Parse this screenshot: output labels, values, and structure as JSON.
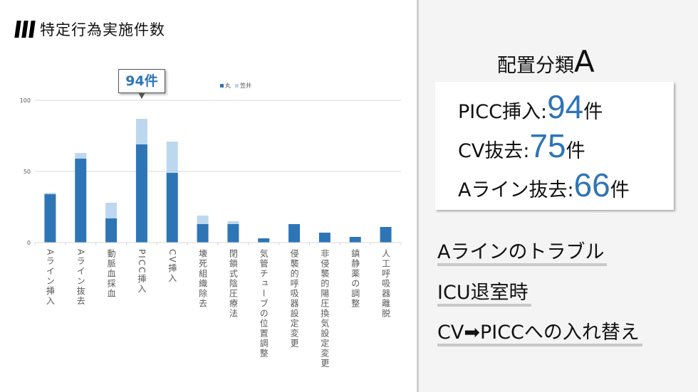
{
  "header": {
    "title": "特定行為実施件数"
  },
  "callout": {
    "label": "94件"
  },
  "chart_data": {
    "type": "bar",
    "stacked": true,
    "categories": [
      "Aライン挿入",
      "Aライン抜去",
      "動脈血採血",
      "PICC挿入",
      "CV挿入",
      "壊死組織除去",
      "閉鎖式陰圧療法",
      "気管チューブの位置調整",
      "侵襲的呼吸器設定変更",
      "非侵襲的陽圧換気設定変更",
      "鎮静薬の調整",
      "人工呼吸器離脱"
    ],
    "series": [
      {
        "name": "丸",
        "color": "#2e75b6",
        "values": [
          34,
          59,
          17,
          69,
          49,
          13,
          13,
          3,
          13,
          7,
          4,
          11
        ]
      },
      {
        "name": "笠井",
        "color": "#bdd7ee",
        "values": [
          1,
          4,
          11,
          18,
          22,
          6,
          2,
          0,
          0,
          0,
          0,
          0
        ]
      }
    ],
    "yticks": [
      "0",
      "50",
      "100"
    ],
    "ylim": [
      0,
      100
    ],
    "grid": true,
    "legend": "top"
  },
  "summary": {
    "title": "配置分類",
    "title_letter": "A",
    "items": [
      {
        "label": "PICC挿入",
        "sep": ":",
        "value": "94",
        "unit": "件"
      },
      {
        "label": "CV抜去",
        "sep": ":",
        "value": "75",
        "unit": "件"
      },
      {
        "label": "Aライン抜去",
        "sep": ":",
        "value": "66",
        "unit": "件"
      }
    ]
  },
  "notes": [
    "Aラインのトラブル",
    "ICU退室時",
    "CV➡PICCへの入れ替え"
  ]
}
